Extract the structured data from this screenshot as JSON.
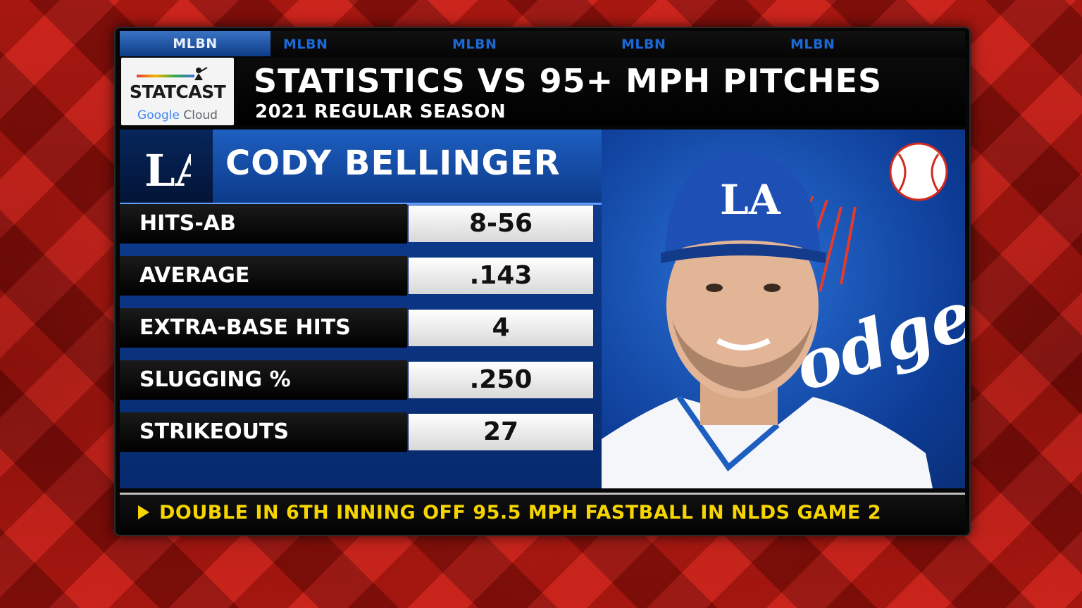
{
  "network_ticker": {
    "items": [
      "MLBN",
      "MLBN",
      "MLBN",
      "MLBN",
      "MLBN"
    ]
  },
  "logo": {
    "brand": "STATCAST",
    "sponsor_google": "Google",
    "sponsor_cloud": "Cloud"
  },
  "header": {
    "title": "STATISTICS VS 95+ MPH PITCHES",
    "subtitle": "2021 REGULAR SEASON"
  },
  "player": {
    "team_abbr": "LA",
    "name": "CODY BELLINGER",
    "jersey_script": "odger"
  },
  "stats": [
    {
      "label": "HITS-AB",
      "value": "8-56"
    },
    {
      "label": "AVERAGE",
      "value": ".143"
    },
    {
      "label": "EXTRA-BASE HITS",
      "value": "4"
    },
    {
      "label": "SLUGGING %",
      "value": ".250"
    },
    {
      "label": "STRIKEOUTS",
      "value": "27"
    }
  ],
  "bottom_ticker": {
    "text": "DOUBLE IN 6TH INNING OFF 95.5 MPH FASTBALL IN NLDS GAME 2"
  },
  "colors": {
    "accent_yellow": "#f5d400",
    "team_blue": "#0d3c96",
    "background_red": "#b3120c"
  }
}
